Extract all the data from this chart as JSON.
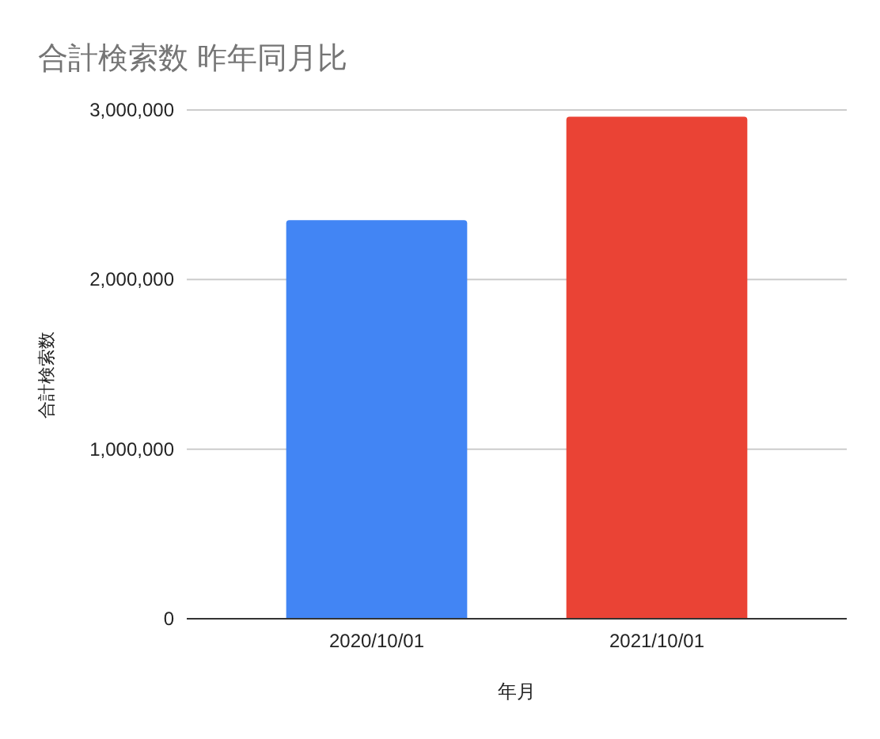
{
  "chart_data": {
    "type": "bar",
    "title": "合計検索数 昨年同月比",
    "xlabel": "年月",
    "ylabel": "合計検索数",
    "categories": [
      "2020/10/01",
      "2021/10/01"
    ],
    "values": [
      2350000,
      2960000
    ],
    "colors": [
      "#4285f4",
      "#ea4335"
    ],
    "ylim": [
      0,
      3000000
    ],
    "yticks": [
      0,
      {
        "value": 1000000,
        "label": "1,000,000"
      },
      {
        "value": 2000000,
        "label": "2,000,000"
      },
      {
        "value": 3000000,
        "label": "3,000,000"
      }
    ],
    "grid": "y"
  }
}
